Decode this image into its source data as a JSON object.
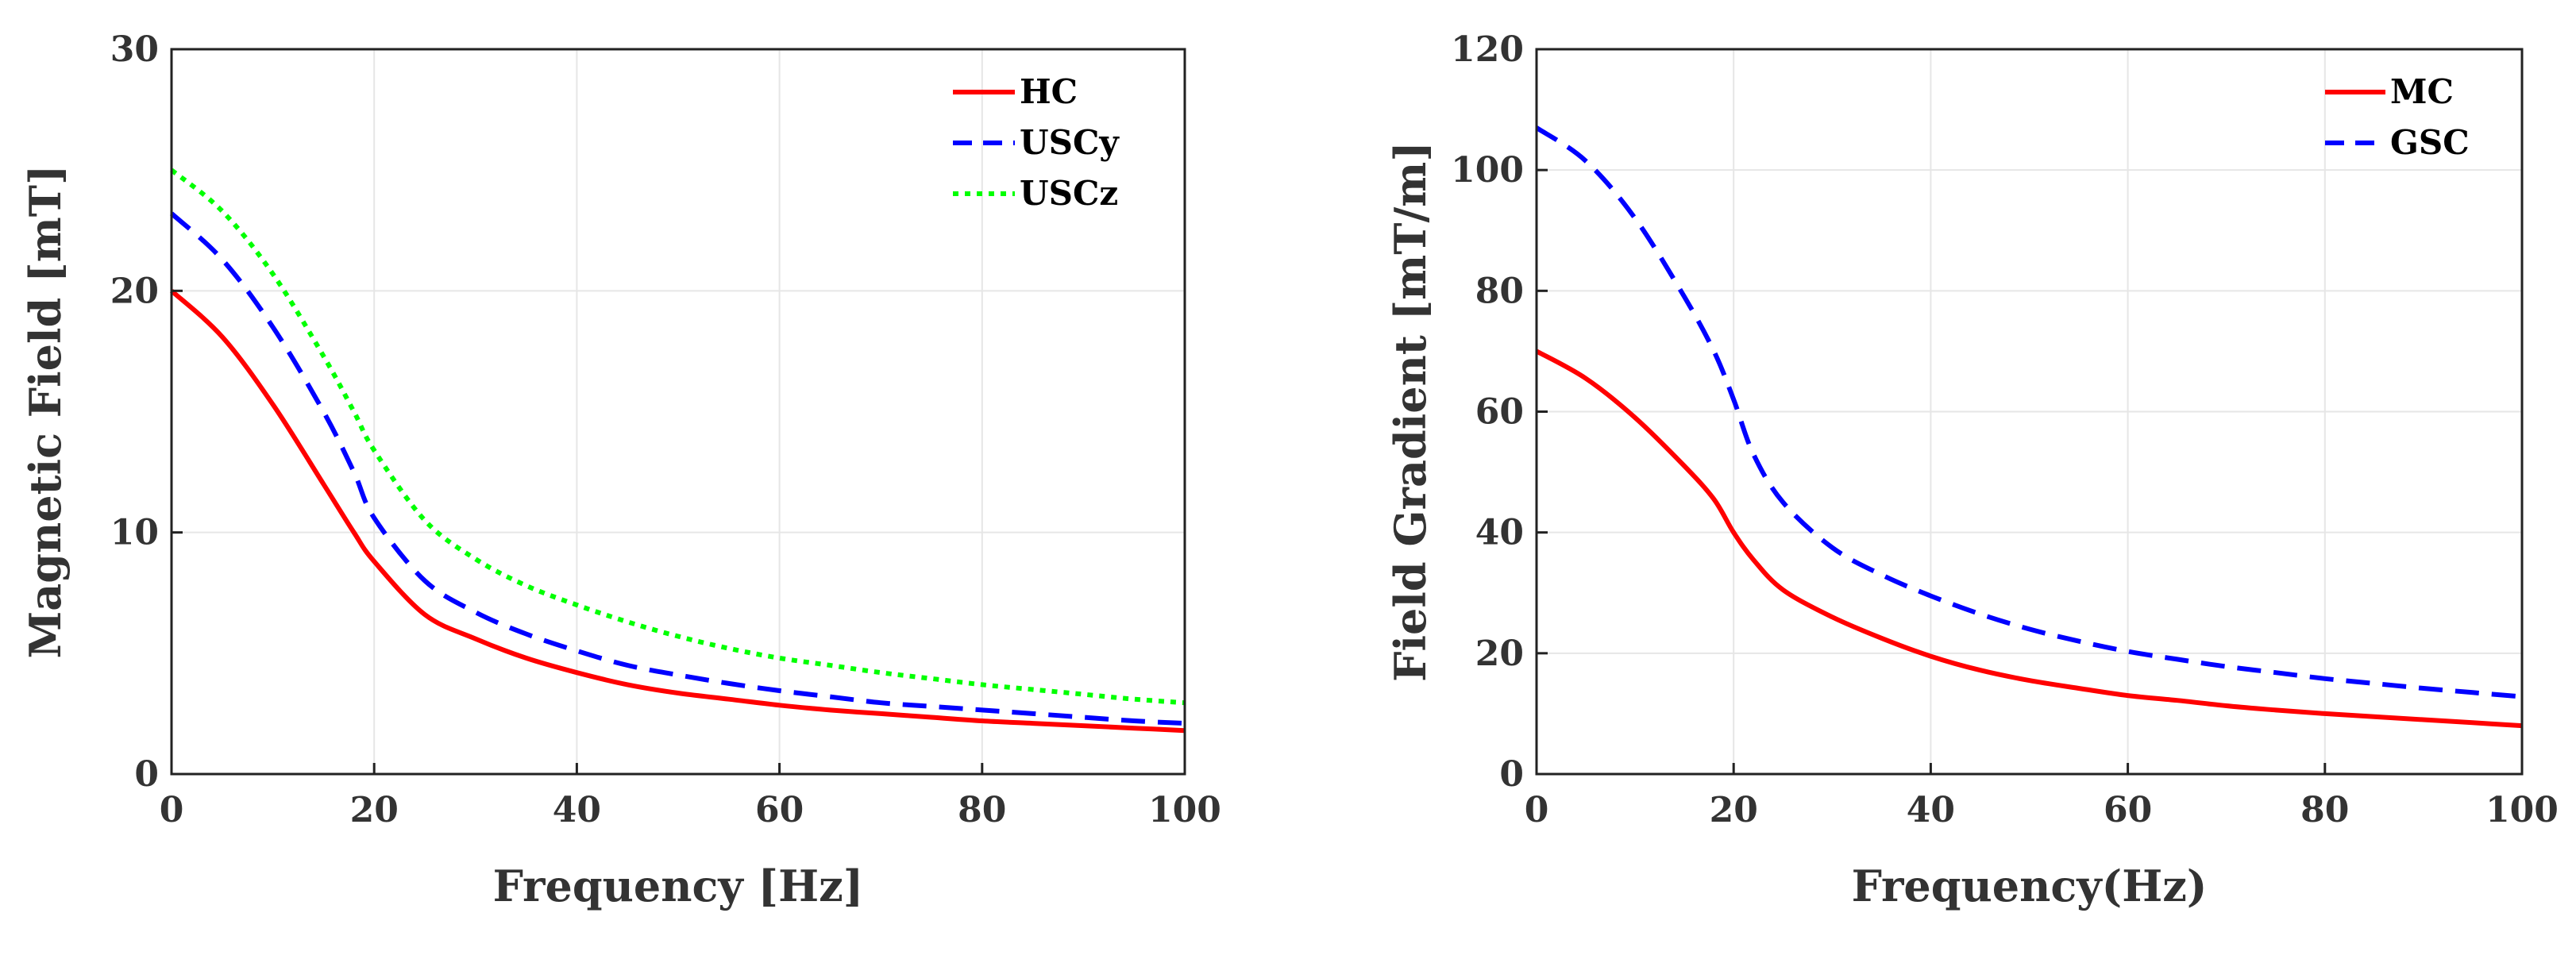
{
  "chart_data": [
    {
      "type": "line",
      "title": "",
      "xlabel": "Frequency [Hz]",
      "ylabel": "Magnetic Field [mT]",
      "xlim": [
        0,
        100
      ],
      "ylim": [
        0,
        30
      ],
      "xticks": [
        0,
        20,
        40,
        60,
        80,
        100
      ],
      "yticks": [
        0,
        10,
        20,
        30
      ],
      "grid": true,
      "legend_position": "top-right",
      "x": [
        0,
        5,
        10,
        15,
        18,
        20,
        25,
        30,
        35,
        40,
        45,
        50,
        55,
        60,
        65,
        70,
        75,
        80,
        85,
        90,
        95,
        100
      ],
      "series": [
        {
          "name": "HC",
          "color": "#ff0000",
          "style": "solid",
          "values": [
            20.0,
            18.1,
            15.3,
            12.0,
            10.0,
            8.8,
            6.6,
            5.6,
            4.8,
            4.2,
            3.7,
            3.35,
            3.1,
            2.85,
            2.65,
            2.5,
            2.35,
            2.2,
            2.1,
            2.0,
            1.9,
            1.8
          ]
        },
        {
          "name": "USCy",
          "color": "#0000ff",
          "style": "dashed",
          "values": [
            23.2,
            21.3,
            18.5,
            15.0,
            12.5,
            10.6,
            8.0,
            6.7,
            5.8,
            5.1,
            4.5,
            4.1,
            3.75,
            3.45,
            3.2,
            2.95,
            2.8,
            2.65,
            2.5,
            2.35,
            2.2,
            2.1
          ]
        },
        {
          "name": "USCz",
          "color": "#00ff00",
          "style": "dotted",
          "values": [
            25.0,
            23.3,
            20.7,
            17.3,
            15.0,
            13.4,
            10.5,
            8.9,
            7.8,
            7.0,
            6.3,
            5.7,
            5.2,
            4.8,
            4.5,
            4.2,
            3.95,
            3.7,
            3.5,
            3.3,
            3.1,
            2.95
          ]
        }
      ]
    },
    {
      "type": "line",
      "title": "",
      "xlabel": "Frequency(Hz)",
      "ylabel": "Field Gradient [mT/m]",
      "xlim": [
        0,
        100
      ],
      "ylim": [
        0,
        120
      ],
      "xticks": [
        0,
        20,
        40,
        60,
        80,
        100
      ],
      "yticks": [
        0,
        20,
        40,
        60,
        80,
        100,
        120
      ],
      "grid": true,
      "legend_position": "top-right",
      "x": [
        0,
        5,
        10,
        15,
        18,
        20,
        22,
        25,
        30,
        35,
        40,
        45,
        50,
        55,
        60,
        65,
        70,
        75,
        80,
        85,
        90,
        95,
        100
      ],
      "series": [
        {
          "name": "MC",
          "color": "#ff0000",
          "style": "solid",
          "values": [
            70.0,
            65.5,
            59.0,
            51.0,
            45.5,
            40.0,
            35.5,
            30.5,
            26.0,
            22.5,
            19.5,
            17.2,
            15.5,
            14.2,
            13.0,
            12.2,
            11.3,
            10.6,
            10.0,
            9.5,
            9.0,
            8.5,
            8.0
          ]
        },
        {
          "name": "GSC",
          "color": "#0000ff",
          "style": "dashed",
          "values": [
            107.0,
            101.5,
            92.0,
            79.0,
            70.0,
            62.0,
            53.0,
            45.0,
            37.5,
            33.0,
            29.5,
            26.5,
            24.0,
            22.0,
            20.3,
            19.0,
            17.8,
            16.8,
            15.8,
            15.0,
            14.2,
            13.5,
            12.8
          ]
        }
      ]
    }
  ]
}
